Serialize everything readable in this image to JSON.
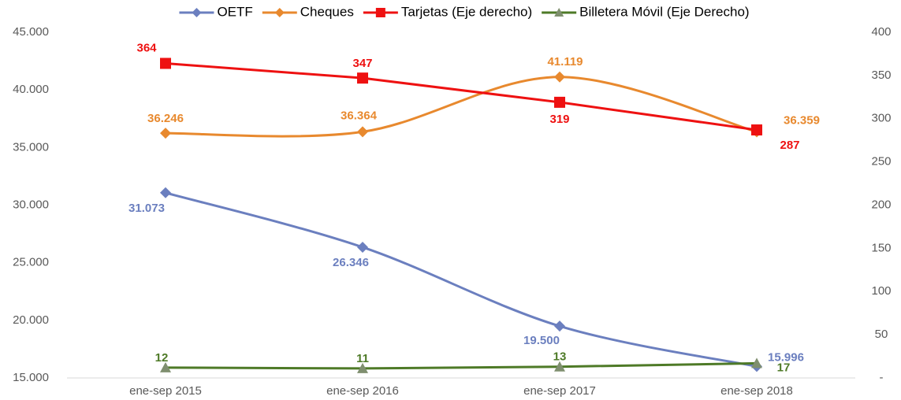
{
  "chart_data": {
    "type": "line",
    "categories": [
      "ene-sep 2015",
      "ene-sep 2016",
      "ene-sep 2017",
      "ene-sep 2018"
    ],
    "ylim": [
      15000,
      45000
    ],
    "yticks": [
      {
        "value": 15000,
        "label": "15.000"
      },
      {
        "value": 20000,
        "label": "20.000"
      },
      {
        "value": 25000,
        "label": "25.000"
      },
      {
        "value": 30000,
        "label": "30.000"
      },
      {
        "value": 35000,
        "label": "35.000"
      },
      {
        "value": 40000,
        "label": "40.000"
      },
      {
        "value": 45000,
        "label": "45.000"
      }
    ],
    "y2lim": [
      0,
      400
    ],
    "y2ticks": [
      {
        "value": 0,
        "label": "-"
      },
      50,
      100,
      150,
      200,
      250,
      300,
      350,
      400
    ],
    "series": [
      {
        "name": "OETF",
        "color": "#6b7fbf",
        "marker": "diamond",
        "smooth": true,
        "values": [
          31073,
          26346,
          19500,
          15996
        ],
        "value_labels": [
          "31.073",
          "26.346",
          "19.500",
          "15.996"
        ]
      },
      {
        "name": "Cheques",
        "color": "#e8892e",
        "marker": "diamond",
        "smooth": true,
        "values": [
          36246,
          36364,
          41119,
          36359
        ],
        "value_labels": [
          "36.246",
          "36.364",
          "41.119",
          "36.359"
        ]
      },
      {
        "name": "Tarjetas (Eje derecho)",
        "color": "#ee1111",
        "marker": "square",
        "smooth": false,
        "axis": "y2",
        "values": [
          364,
          347,
          319,
          287
        ]
      },
      {
        "name": "Billetera Móvil (Eje Derecho)",
        "color": "#4e7a27",
        "marker": "triangle",
        "smooth": false,
        "axis": "y2",
        "values": [
          12,
          11,
          13,
          17
        ]
      }
    ]
  }
}
